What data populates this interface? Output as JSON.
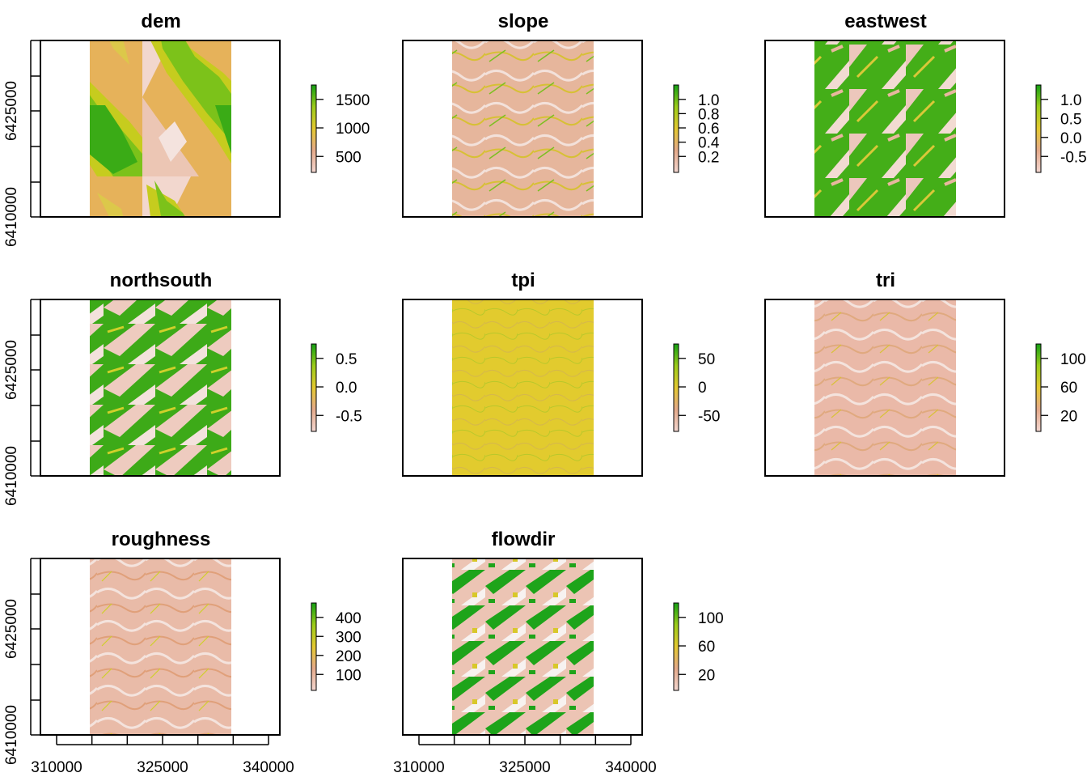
{
  "colors": {
    "ramp": [
      "#f2f2f2",
      "#e8c1b4",
      "#e4a98a",
      "#e3c830",
      "#c8d81a",
      "#6cc01a",
      "#14a014"
    ],
    "frame": "#000000"
  },
  "x_axis": {
    "ticks": [
      310000,
      325000,
      340000
    ],
    "labels": [
      "310000",
      "325000",
      "340000"
    ]
  },
  "y_axis": {
    "ticks": [
      6410000,
      6425000
    ],
    "labels": [
      "6410000",
      "6425000"
    ]
  },
  "chart_data": [
    {
      "type": "heatmap",
      "title": "dem",
      "legend": {
        "ticks": [
          500,
          1000,
          1500
        ],
        "labels": [
          "500",
          "1000",
          "1500"
        ]
      }
    },
    {
      "type": "heatmap",
      "title": "slope",
      "legend": {
        "ticks": [
          0.2,
          0.4,
          0.6,
          0.8,
          1.0
        ],
        "labels": [
          "0.2",
          "0.4",
          "0.6",
          "0.8",
          "1.0"
        ]
      }
    },
    {
      "type": "heatmap",
      "title": "eastwest",
      "legend": {
        "ticks": [
          -0.5,
          0.0,
          0.5,
          1.0
        ],
        "labels": [
          "-0.5",
          "0.0",
          "0.5",
          "1.0"
        ]
      }
    },
    {
      "type": "heatmap",
      "title": "northsouth",
      "legend": {
        "ticks": [
          -0.5,
          0.0,
          0.5
        ],
        "labels": [
          "-0.5",
          "0.0",
          "0.5"
        ]
      }
    },
    {
      "type": "heatmap",
      "title": "tpi",
      "legend": {
        "ticks": [
          -50,
          0,
          50
        ],
        "labels": [
          "-50",
          "0",
          "50"
        ]
      }
    },
    {
      "type": "heatmap",
      "title": "tri",
      "legend": {
        "ticks": [
          20,
          60,
          100
        ],
        "labels": [
          "20",
          "60",
          "100"
        ]
      }
    },
    {
      "type": "heatmap",
      "title": "roughness",
      "legend": {
        "ticks": [
          100,
          200,
          300,
          400
        ],
        "labels": [
          "100",
          "200",
          "300",
          "400"
        ]
      }
    },
    {
      "type": "heatmap",
      "title": "flowdir",
      "legend": {
        "ticks": [
          20,
          60,
          100
        ],
        "labels": [
          "20",
          "60",
          "100"
        ]
      }
    }
  ]
}
